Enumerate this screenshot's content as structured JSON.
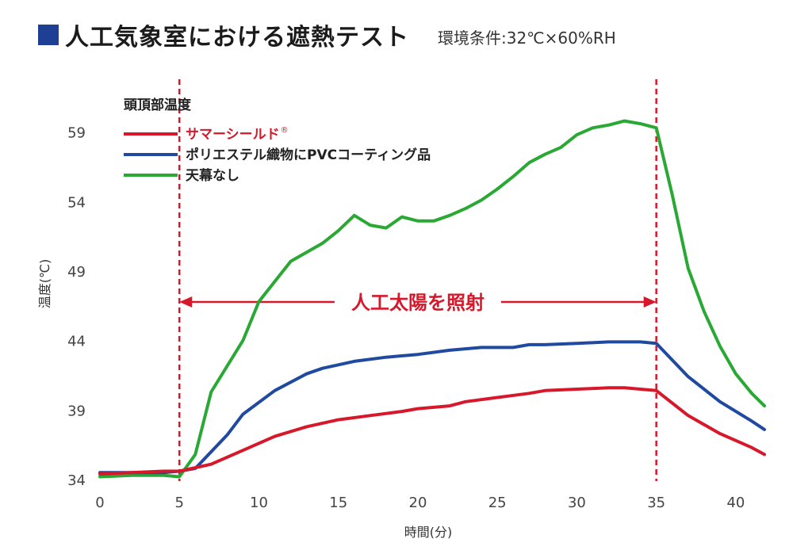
{
  "header": {
    "title": "人工気象室における遮熱テスト",
    "subtitle": "環境条件:32℃×60%RH"
  },
  "chart_data": {
    "type": "line",
    "xlabel": "時間(分)",
    "ylabel": "温度(℃)",
    "xlim": [
      0,
      41.8
    ],
    "ylim": [
      34,
      62
    ],
    "x_ticks": [
      0,
      5,
      10,
      15,
      20,
      25,
      30,
      35,
      40
    ],
    "y_ticks": [
      34,
      39,
      44,
      49,
      54,
      59
    ],
    "grid": false,
    "legend_title": "頭頂部温度",
    "legend_position": "top-left",
    "annotation": {
      "text": "人工太陽を照射",
      "x_start": 5,
      "x_end": 35
    },
    "vlines": [
      5,
      35
    ],
    "series": [
      {
        "name": "サマーシールド",
        "superscript": "®",
        "color": "#d7182a",
        "x": [
          0,
          2,
          4,
          5,
          7,
          9,
          11,
          13,
          15,
          17,
          19,
          20,
          22,
          23,
          25,
          27,
          28,
          30,
          32,
          33,
          34,
          35,
          37,
          39,
          41,
          41.8
        ],
        "y": [
          34.4,
          34.5,
          34.6,
          34.6,
          35.1,
          36.1,
          37.1,
          37.8,
          38.3,
          38.6,
          38.9,
          39.1,
          39.3,
          39.6,
          39.9,
          40.2,
          40.4,
          40.5,
          40.6,
          40.6,
          40.5,
          40.4,
          38.6,
          37.3,
          36.3,
          35.8
        ]
      },
      {
        "name": "ポリエステル織物にPVCコーティング品",
        "color": "#1f4aa0",
        "x": [
          0,
          2,
          4,
          5,
          6,
          8,
          9,
          11,
          13,
          14,
          16,
          18,
          20,
          22,
          24,
          26,
          27,
          28,
          30,
          32,
          34,
          35,
          37,
          39,
          41,
          41.8
        ],
        "y": [
          34.5,
          34.5,
          34.5,
          34.6,
          34.8,
          37.2,
          38.7,
          40.4,
          41.6,
          42.0,
          42.5,
          42.8,
          43.0,
          43.3,
          43.5,
          43.5,
          43.7,
          43.7,
          43.8,
          43.9,
          43.9,
          43.8,
          41.4,
          39.6,
          38.2,
          37.6
        ]
      },
      {
        "name": "天幕なし",
        "color": "#2aa834",
        "x": [
          0,
          2,
          4,
          5,
          6,
          7,
          9,
          10,
          12,
          14,
          15,
          16,
          17,
          18,
          19,
          20,
          21,
          22,
          23,
          24,
          25,
          26,
          27,
          28,
          29,
          30,
          31,
          32,
          33,
          34,
          35,
          36,
          37,
          38,
          39,
          40,
          41,
          41.8
        ],
        "y": [
          34.2,
          34.3,
          34.3,
          34.2,
          35.8,
          40.3,
          44.0,
          46.8,
          49.7,
          51.0,
          51.9,
          53.0,
          52.3,
          52.1,
          52.9,
          52.6,
          52.6,
          53.0,
          53.5,
          54.1,
          54.9,
          55.8,
          56.8,
          57.4,
          57.9,
          58.8,
          59.3,
          59.5,
          59.8,
          59.6,
          59.3,
          54.5,
          49.2,
          46.1,
          43.6,
          41.6,
          40.2,
          39.3
        ]
      }
    ]
  }
}
